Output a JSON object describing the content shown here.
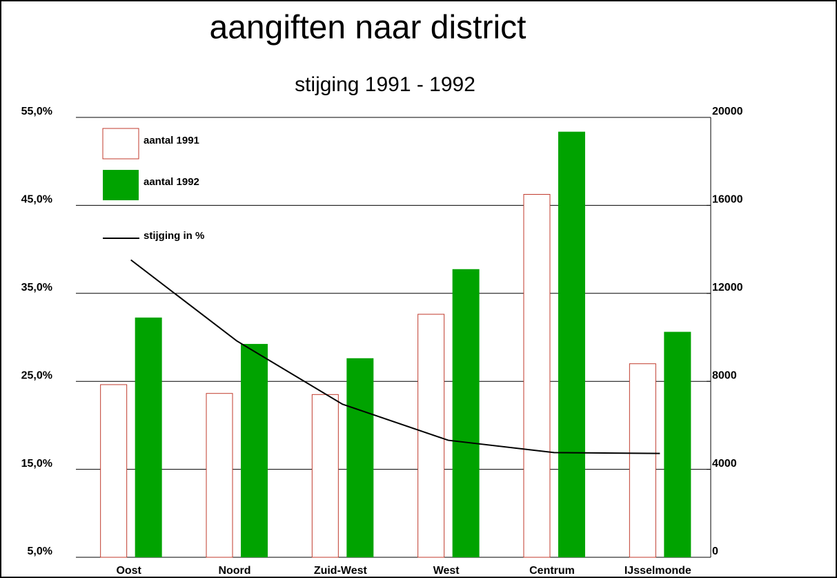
{
  "chart_data": {
    "type": "bar",
    "title": "aangiften naar district",
    "subtitle": "stijging 1991 - 1992",
    "categories": [
      "Oost",
      "Noord",
      "Zuid-West",
      "West",
      "Centrum",
      "IJsselmonde"
    ],
    "series": [
      {
        "name": "aantal 1991",
        "type": "bar",
        "color": "#c0392b",
        "fill": "none",
        "axis": "y2",
        "values": [
          7850,
          7450,
          7400,
          11050,
          16500,
          8800
        ]
      },
      {
        "name": "aantal 1992",
        "type": "bar",
        "color": "#00a300",
        "fill": "solid",
        "axis": "y2",
        "values": [
          10900,
          9700,
          9050,
          13100,
          19350,
          10250
        ]
      },
      {
        "name": "stijging in %",
        "type": "line",
        "color": "#000000",
        "axis": "y",
        "values": [
          38.8,
          29.6,
          22.4,
          18.3,
          16.9,
          16.8
        ]
      }
    ],
    "ylim": [
      5,
      55
    ],
    "yticks": [
      {
        "value": 5,
        "label": "5,0%"
      },
      {
        "value": 15,
        "label": "15,0%"
      },
      {
        "value": 25,
        "label": "25,0%"
      },
      {
        "value": 35,
        "label": "35,0%"
      },
      {
        "value": 45,
        "label": "45,0%"
      },
      {
        "value": 55,
        "label": "55,0%"
      }
    ],
    "y2lim": [
      0,
      20000
    ],
    "y2ticks": [
      0,
      4000,
      8000,
      12000,
      16000,
      20000
    ],
    "grid": true,
    "legend": "top-left"
  }
}
